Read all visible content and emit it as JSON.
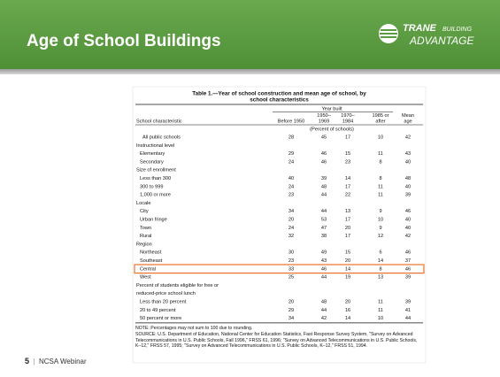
{
  "header": {
    "title": "Age of School Buildings",
    "logo": {
      "brand": "TRANE",
      "tag1": "BUILDING",
      "tag2": "ADVANTAGE"
    }
  },
  "table": {
    "title": [
      "Table 1.—Year of school construction and mean age of school, by",
      "school characteristics"
    ],
    "group_header": "Year built",
    "columns": [
      [
        "School characteristic"
      ],
      [
        "Before 1950"
      ],
      [
        "1950–",
        "1969"
      ],
      [
        "1970–",
        "1984"
      ],
      [
        "1985 or",
        "after"
      ],
      [
        "Mean",
        "age"
      ]
    ],
    "unit": "(Percent of schools)",
    "rows": [
      {
        "label": "All public schools",
        "values": [
          28,
          45,
          17,
          10,
          42
        ]
      },
      {
        "lines": [
          "Instructional level"
        ]
      },
      {
        "label": "Elementary",
        "values": [
          29,
          46,
          15,
          11,
          43
        ]
      },
      {
        "label": "Secondary",
        "values": [
          24,
          46,
          23,
          8,
          40
        ]
      },
      {
        "lines": [
          "Size of enrollment"
        ]
      },
      {
        "label": "Less than 300",
        "values": [
          40,
          39,
          14,
          8,
          48
        ]
      },
      {
        "label": "300 to 999",
        "values": [
          24,
          48,
          17,
          11,
          40
        ]
      },
      {
        "label": "1,000 or more",
        "values": [
          23,
          44,
          22,
          11,
          39
        ]
      },
      {
        "lines": [
          "Locale"
        ]
      },
      {
        "label": "City",
        "values": [
          34,
          44,
          13,
          9,
          46
        ]
      },
      {
        "label": "Urban fringe",
        "values": [
          20,
          53,
          17,
          10,
          40
        ]
      },
      {
        "label": "Town",
        "values": [
          24,
          47,
          20,
          9,
          40
        ]
      },
      {
        "label": "Rural",
        "values": [
          32,
          38,
          17,
          12,
          42
        ]
      },
      {
        "lines": [
          "Region"
        ]
      },
      {
        "label": "Northeast",
        "values": [
          30,
          49,
          15,
          6,
          46
        ]
      },
      {
        "label": "Southeast",
        "values": [
          23,
          43,
          20,
          14,
          37
        ]
      },
      {
        "label": "Central",
        "values": [
          33,
          46,
          14,
          8,
          46
        ]
      },
      {
        "label": "West",
        "values": [
          25,
          44,
          19,
          13,
          39
        ]
      },
      {
        "lines": [
          "Percent of students eligible for free or",
          "reduced-price school lunch"
        ]
      },
      {
        "label": "Less than 20 percent",
        "values": [
          20,
          48,
          20,
          11,
          39
        ]
      },
      {
        "label": "20 to 49 percent",
        "values": [
          29,
          44,
          16,
          11,
          41
        ]
      },
      {
        "label": "50 percent or more",
        "values": [
          34,
          42,
          14,
          10,
          44
        ]
      }
    ],
    "note": "NOTE: Percentages may not sum to 100 due to rounding.",
    "source": "SOURCE: U.S. Department of Education, National Center for Education Statistics, Fast Response Survey System, \"Survey on Advanced Telecommunications in U.S. Public Schools, Fall 1996,\" FRSS 61, 1996; \"Survey on Advanced Telecommunications in U.S. Public Schools, K–12,\" FRSS 57, 1995; \"Survey on Advanced Telecommunications in U.S. Public Schools, K–12,\" FRSS 51, 1994."
  },
  "footer": {
    "page": "5",
    "text": "NCSA Webinar"
  }
}
